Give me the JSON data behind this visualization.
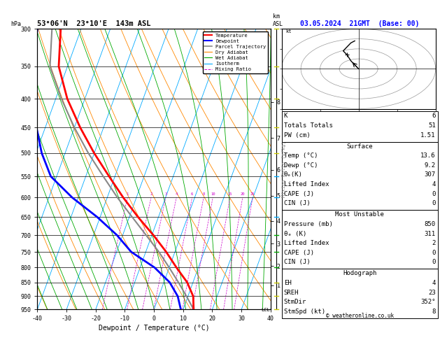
{
  "title_left": "53°06'N  23°10'E  143m ASL",
  "title_right": "03.05.2024  21GMT  (Base: 00)",
  "xlabel": "Dewpoint / Temperature (°C)",
  "pressure_ticks": [
    300,
    350,
    400,
    450,
    500,
    550,
    600,
    650,
    700,
    750,
    800,
    850,
    900,
    950
  ],
  "temp_xlim": [
    -40,
    40
  ],
  "temp_xticks": [
    -40,
    -30,
    -20,
    -10,
    0,
    10,
    20,
    30,
    40
  ],
  "bg_color": "#ffffff",
  "temp_profile_T": [
    13.6,
    11.8,
    8.0,
    2.5,
    -3.0,
    -9.5,
    -17.0,
    -24.5,
    -32.0,
    -40.0,
    -48.0,
    -56.0,
    -63.0,
    -67.0
  ],
  "temp_profile_P": [
    950,
    900,
    850,
    800,
    750,
    700,
    650,
    600,
    550,
    500,
    450,
    400,
    350,
    300
  ],
  "dewp_profile_T": [
    9.2,
    6.5,
    2.0,
    -5.0,
    -15.0,
    -22.0,
    -31.0,
    -42.0,
    -52.0,
    -58.0,
    -63.0,
    -68.0,
    -72.0,
    -75.0
  ],
  "dewp_profile_P": [
    950,
    900,
    850,
    800,
    750,
    700,
    650,
    600,
    550,
    500,
    450,
    400,
    350,
    300
  ],
  "parcel_T": [
    13.6,
    9.5,
    5.0,
    0.0,
    -5.5,
    -12.0,
    -19.0,
    -26.5,
    -34.0,
    -42.0,
    -50.0,
    -58.0,
    -66.0,
    -70.0
  ],
  "parcel_P": [
    950,
    900,
    850,
    800,
    750,
    700,
    650,
    600,
    550,
    500,
    450,
    400,
    350,
    300
  ],
  "lcl_pressure": 940,
  "km_ticks": [
    1,
    2,
    3,
    4,
    5,
    6,
    7,
    8
  ],
  "km_pressures": [
    860,
    795,
    725,
    660,
    595,
    535,
    470,
    405
  ],
  "mixing_ratios": [
    1,
    2,
    3,
    4,
    6,
    8,
    10,
    15,
    20,
    25
  ],
  "mixing_ratio_labels": [
    "1",
    "2",
    "3",
    "4",
    "6",
    "8",
    "10",
    "15",
    "20",
    "25"
  ],
  "skew_factor": 35.0,
  "isotherm_color": "#00aaff",
  "dry_adiabat_color": "#ff8800",
  "wet_adiabat_color": "#00aa00",
  "mixing_ratio_color": "#cc00cc",
  "temp_color": "#ff0000",
  "dewp_color": "#0000ff",
  "parcel_color": "#888888",
  "info": {
    "K": 6,
    "Totals_Totals": 51,
    "PW_cm": 1.51,
    "Surf_Temp": 13.6,
    "Surf_Dewp": 9.2,
    "Surf_theta_e": 307,
    "Surf_LI": 4,
    "Surf_CAPE": 0,
    "Surf_CIN": 0,
    "MU_Pressure": 850,
    "MU_theta_e": 311,
    "MU_LI": 2,
    "MU_CAPE": 0,
    "MU_CIN": 0,
    "EH": 4,
    "SREH": 23,
    "StmDir": "352°",
    "StmSpd": 8
  },
  "copyright": "© weatheronline.co.uk",
  "wind_colors": {
    "950": "#cccc00",
    "900": "#cccc00",
    "850": "#cccc00",
    "800": "#00aa00",
    "750": "#00aa00",
    "700": "#00aa00",
    "650": "#00aaff",
    "600": "#00aaff",
    "550": "#00aaff",
    "500": "#cccc00",
    "450": "#cccc00",
    "400": "#cccc00",
    "350": "#cccc00",
    "300": "#cccc00"
  }
}
